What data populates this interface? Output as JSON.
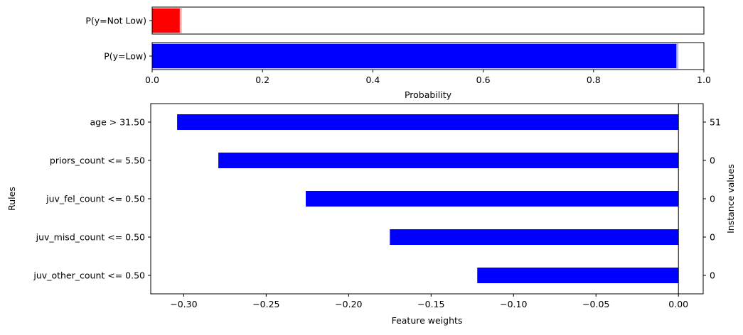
{
  "chart_data": [
    {
      "type": "bar",
      "orientation": "horizontal",
      "categories": [
        "P(y=Not Low)",
        "P(y=Low)"
      ],
      "values": [
        0.05,
        0.95
      ],
      "colors": [
        "#ff0000",
        "#0000ff"
      ],
      "xlabel": "Probability",
      "xlim": [
        0,
        1.0
      ],
      "xticks": [
        "0.0",
        "0.2",
        "0.4",
        "0.6",
        "0.8",
        "1.0"
      ],
      "grid": false
    },
    {
      "type": "bar",
      "orientation": "horizontal",
      "categories": [
        "age > 31.50",
        "priors_count <= 5.50",
        "juv_fel_count <= 0.50",
        "juv_misd_count <= 0.50",
        "juv_other_count <= 0.50"
      ],
      "values": [
        -0.304,
        -0.279,
        -0.226,
        -0.175,
        -0.122
      ],
      "instance_values": [
        "51",
        "0",
        "0",
        "0",
        "0"
      ],
      "color": "#0000ff",
      "xlabel": "Feature weights",
      "ylabel": "Rules",
      "ylabel_right": "Instance values",
      "xlim": [
        -0.32,
        0.015
      ],
      "xticks": [
        "−0.30",
        "−0.25",
        "−0.20",
        "−0.15",
        "−0.10",
        "−0.05",
        "0.00"
      ],
      "xtick_values": [
        -0.3,
        -0.25,
        -0.2,
        -0.15,
        -0.1,
        -0.05,
        0.0
      ],
      "grid": false
    }
  ]
}
